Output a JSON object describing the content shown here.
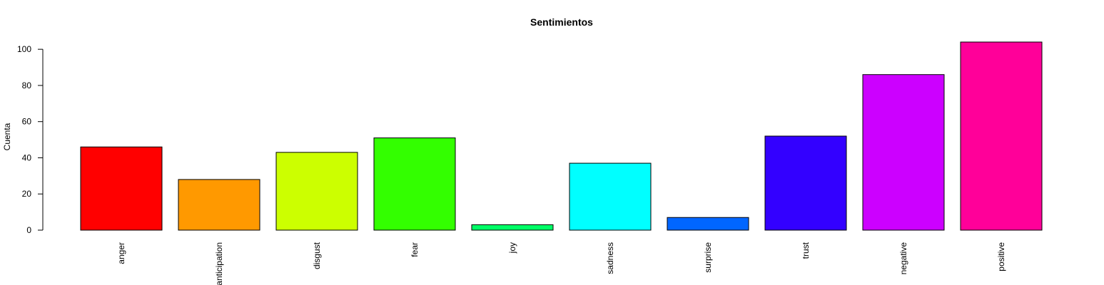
{
  "chart_data": {
    "type": "bar",
    "title": "Sentimientos",
    "xlabel": "",
    "ylabel": "Cuenta",
    "categories": [
      "anger",
      "anticipation",
      "disgust",
      "fear",
      "joy",
      "sadness",
      "surprise",
      "trust",
      "negative",
      "positive"
    ],
    "values": [
      46,
      28,
      43,
      51,
      3,
      37,
      7,
      52,
      86,
      104
    ],
    "colors": [
      "#FF0000",
      "#FF9900",
      "#CCFF00",
      "#33FF00",
      "#00FF66",
      "#00FFFF",
      "#0066FF",
      "#3300FF",
      "#CC00FF",
      "#FF0099"
    ],
    "ylim": [
      0,
      104
    ],
    "yticks": [
      0,
      20,
      40,
      60,
      80,
      100
    ],
    "grid": false,
    "legend": "none"
  }
}
